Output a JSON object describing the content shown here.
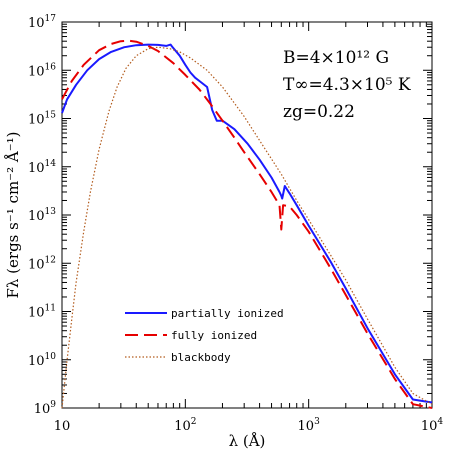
{
  "chart_data": {
    "type": "line",
    "xscale": "log",
    "yscale": "log",
    "xlim": [
      10,
      10000
    ],
    "ylim": [
      1000000000.0,
      1e+17
    ],
    "xlabel": "λ (Å)",
    "ylabel": "Fλ (ergs s⁻¹ cm⁻² Å⁻¹)",
    "x_ticks": [
      {
        "base": "10",
        "exp": ""
      },
      {
        "base": "10",
        "exp": "2"
      },
      {
        "base": "10",
        "exp": "3"
      },
      {
        "base": "10",
        "exp": "4"
      }
    ],
    "y_ticks": [
      {
        "base": "10",
        "exp": "9"
      },
      {
        "base": "10",
        "exp": "10"
      },
      {
        "base": "10",
        "exp": "11"
      },
      {
        "base": "10",
        "exp": "12"
      },
      {
        "base": "10",
        "exp": "13"
      },
      {
        "base": "10",
        "exp": "14"
      },
      {
        "base": "10",
        "exp": "15"
      },
      {
        "base": "10",
        "exp": "16"
      },
      {
        "base": "10",
        "exp": "17"
      }
    ],
    "annotations": {
      "B": "B=4×10¹² G",
      "T": "T∞=4.3×10⁵ K",
      "z": "zg=0.22"
    },
    "legend_position": "bottom-left",
    "series": [
      {
        "name": "partially ionized",
        "color": "#1a1aff",
        "style": "solid",
        "x": [
          10,
          11,
          13,
          16,
          20,
          25,
          32,
          40,
          50,
          60,
          70,
          76,
          78,
          90,
          100,
          110,
          120,
          130,
          150,
          165,
          180,
          200,
          250,
          320,
          400,
          500,
          580,
          600,
          610,
          640,
          700,
          800,
          1000,
          1500,
          2000,
          3000,
          5000,
          7000,
          10000
        ],
        "y": [
          1300000000000000.0,
          2500000000000000.0,
          5000000000000000.0,
          1e+16,
          1.7e+16,
          2.4e+16,
          3e+16,
          3.3e+16,
          3.4e+16,
          3.35e+16,
          3.2e+16,
          3.4e+16,
          3.1e+16,
          2e+16,
          1.3e+16,
          9000000000000000.0,
          7000000000000000.0,
          6000000000000000.0,
          4500000000000000.0,
          1500000000000000.0,
          900000000000000.0,
          900000000000000.0,
          600000000000000.0,
          300000000000000.0,
          140000000000000.0,
          60000000000000.0,
          30000000000000.0,
          25000000000000.0,
          22000000000000.0,
          40000000000000.0,
          28000000000000.0,
          16000000000000.0,
          6000000000000.0,
          1100000000000.0,
          300000000000.0,
          45000000000.0,
          5000000000.0,
          1500000000.0,
          1300000000.0
        ]
      },
      {
        "name": "fully ionized",
        "color": "#e60000",
        "style": "dashed",
        "x": [
          10,
          12,
          15,
          20,
          25,
          30,
          35,
          40,
          50,
          60,
          80,
          100,
          130,
          160,
          200,
          250,
          300,
          400,
          500,
          580,
          600,
          620,
          700,
          800,
          1000,
          1500,
          2000,
          3000,
          5000,
          7000,
          10000
        ],
        "y": [
          2500000000000000.0,
          6000000000000000.0,
          1.3e+16,
          2.6e+16,
          3.5e+16,
          4e+16,
          4.1e+16,
          3.9e+16,
          3.2e+16,
          2.5e+16,
          1.4e+16,
          8000000000000000.0,
          4000000000000000.0,
          2000000000000000.0,
          900000000000000.0,
          400000000000000.0,
          200000000000000.0,
          70000000000000.0,
          30000000000000.0,
          16000000000000.0,
          5000000000000.0,
          16000000000000.0,
          15000000000000.0,
          10000000000000.0,
          4500000000000.0,
          800000000000.0,
          220000000000.0,
          35000000000.0,
          4000000000.0,
          1200000000.0,
          1000000000.0
        ]
      },
      {
        "name": "blackbody",
        "color": "#b35c1e",
        "style": "dotted",
        "x": [
          10,
          11,
          12,
          13,
          15,
          17,
          20,
          24,
          28,
          33,
          40,
          50,
          60,
          75,
          90,
          110,
          150,
          200,
          300,
          400,
          600,
          800,
          1000,
          1500,
          2000,
          3000,
          5000,
          7000,
          10000
        ],
        "y": [
          1000000000.0,
          10000000000.0,
          70000000000.0,
          400000000000.0,
          4500000000000.0,
          30000000000000.0,
          230000000000000.0,
          1400000000000000.0,
          4500000000000000.0,
          1.1e+16,
          2e+16,
          2.8e+16,
          3e+16,
          2.8e+16,
          2.4e+16,
          1.8e+16,
          1e+16,
          4500000000000000.0,
          1100000000000000.0,
          350000000000000.0,
          70000000000000.0,
          20000000000000.0,
          8000000000000.0,
          1500000000000.0,
          450000000000.0,
          70000000000.0,
          7000000000.0,
          2000000000.0,
          1200000000.0
        ]
      }
    ]
  }
}
